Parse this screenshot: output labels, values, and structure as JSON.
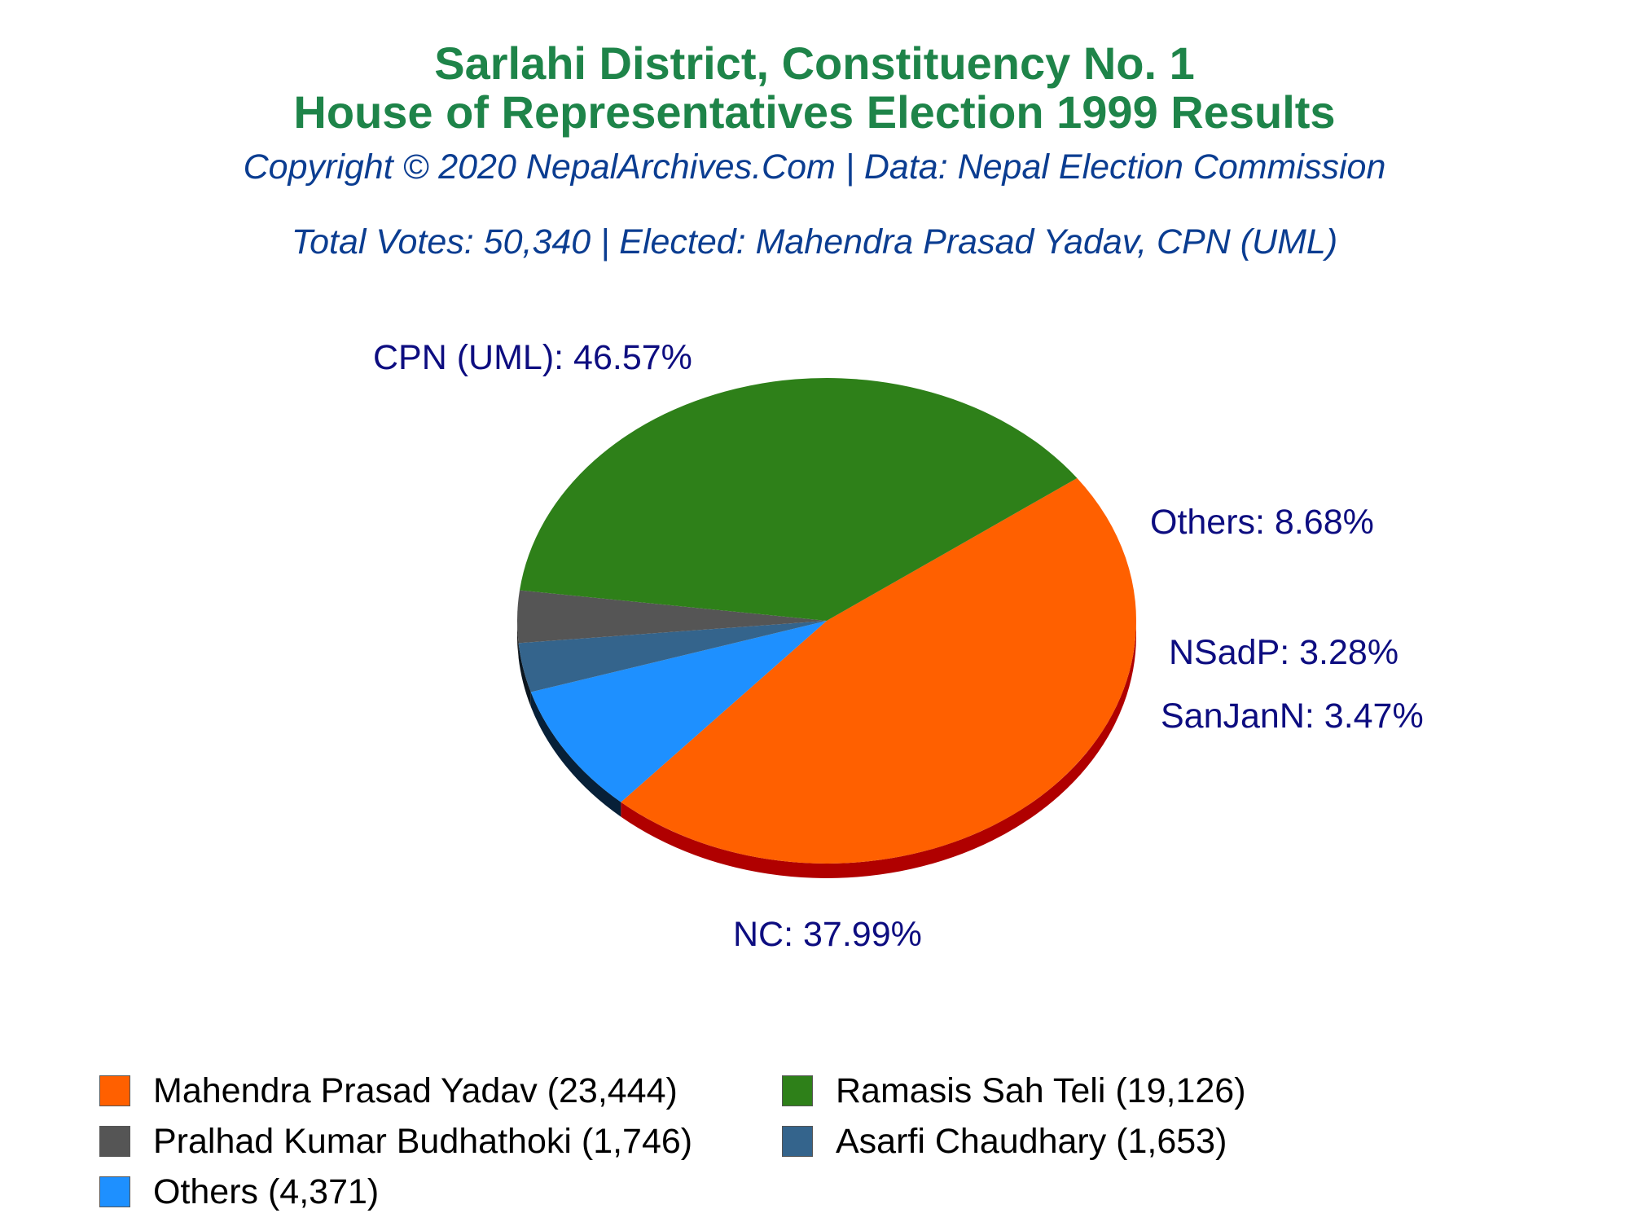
{
  "header": {
    "title_line1": "Sarlahi District, Constituency No. 1",
    "title_line2": "House of Representatives Election 1999 Results",
    "copyright": "Copyright © 2020 NepalArchives.Com | Data: Nepal Election Commission",
    "summary": "Total Votes: 50,340 | Elected: Mahendra Prasad Yadav, CPN (UML)"
  },
  "chart_data": {
    "type": "pie",
    "slices": [
      {
        "party": "CPN (UML)",
        "candidate": "Mahendra Prasad Yadav",
        "votes": 23444,
        "percent": 46.57,
        "color": "#ff6000",
        "label": "CPN (UML): 46.57%"
      },
      {
        "party": "Others",
        "candidate": "Others",
        "votes": 4371,
        "percent": 8.68,
        "color": "#1e90ff",
        "label": "Others: 8.68%"
      },
      {
        "party": "NSadP",
        "candidate": "Asarfi Chaudhary",
        "votes": 1653,
        "percent": 3.28,
        "color": "#34648c",
        "label": "NSadP: 3.28%"
      },
      {
        "party": "SanJanN",
        "candidate": "Pralhad Kumar Budhathoki",
        "votes": 1746,
        "percent": 3.47,
        "color": "#555555",
        "label": "SanJanN: 3.47%"
      },
      {
        "party": "NC",
        "candidate": "Ramasis Sah Teli",
        "votes": 19126,
        "percent": 37.99,
        "color": "#2e8019",
        "label": "NC: 37.99%"
      }
    ],
    "legend": [
      [
        {
          "text": "Mahendra Prasad Yadav (23,444)",
          "color": "#ff6000"
        },
        {
          "text": "Ramasis Sah Teli (19,126)",
          "color": "#2e8019"
        }
      ],
      [
        {
          "text": "Pralhad Kumar Budhathoki (1,746)",
          "color": "#555555"
        },
        {
          "text": "Asarfi Chaudhary (1,653)",
          "color": "#34648c"
        }
      ],
      [
        {
          "text": "Others (4,371)",
          "color": "#1e90ff"
        }
      ]
    ]
  }
}
